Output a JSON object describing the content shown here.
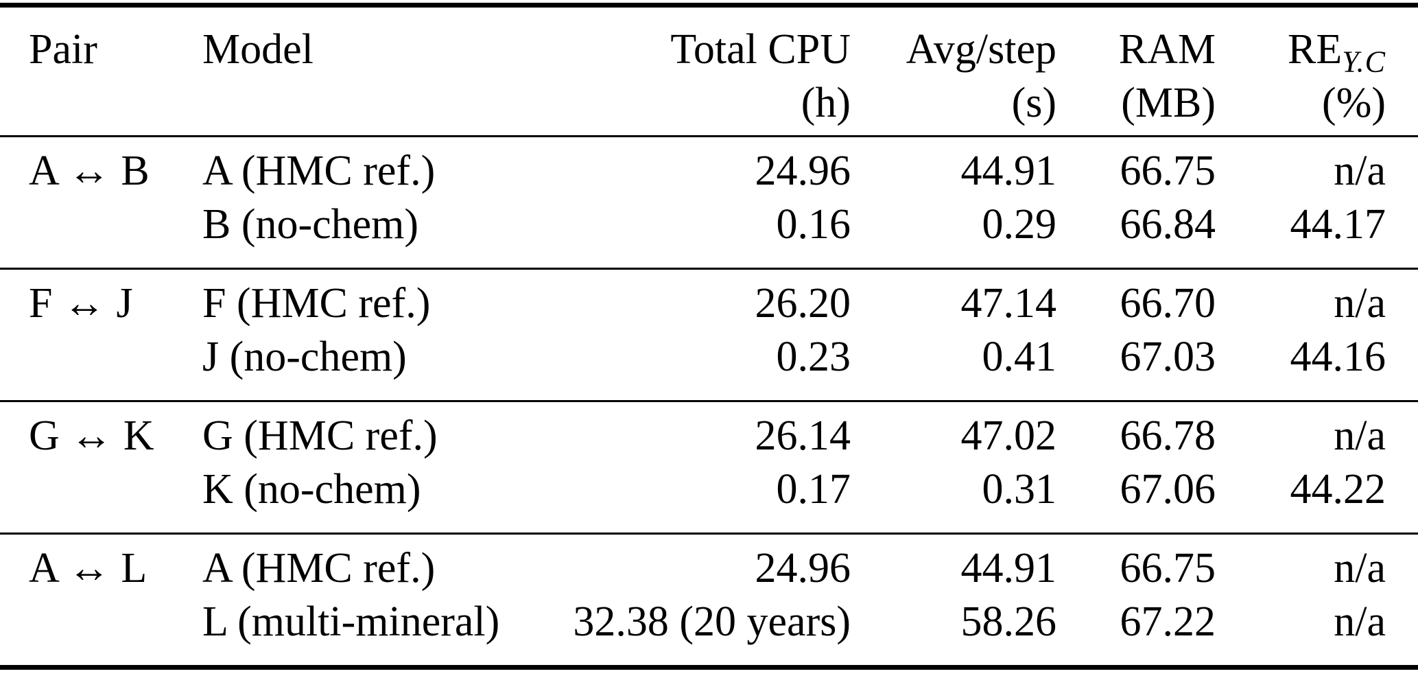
{
  "table": {
    "headers": {
      "pair": "Pair",
      "model": "Model",
      "total_cpu": "Total CPU",
      "total_cpu_unit": "(h)",
      "avg_step": "Avg/step",
      "avg_step_unit": "(s)",
      "ram": "RAM",
      "ram_unit": "(MB)",
      "re_base": "RE",
      "re_sub": "Y.C",
      "re_unit": "(%)"
    },
    "groups": [
      {
        "pair": "A ↔ B",
        "rows": [
          {
            "model": "A (HMC ref.)",
            "total_cpu": "24.96",
            "avg_step": "44.91",
            "ram": "66.75",
            "re": "n/a"
          },
          {
            "model": "B (no-chem)",
            "total_cpu": "0.16",
            "avg_step": "0.29",
            "ram": "66.84",
            "re": "44.17"
          }
        ]
      },
      {
        "pair": "F ↔ J",
        "rows": [
          {
            "model": "F (HMC ref.)",
            "total_cpu": "26.20",
            "avg_step": "47.14",
            "ram": "66.70",
            "re": "n/a"
          },
          {
            "model": "J (no-chem)",
            "total_cpu": "0.23",
            "avg_step": "0.41",
            "ram": "67.03",
            "re": "44.16"
          }
        ]
      },
      {
        "pair": "G ↔ K",
        "rows": [
          {
            "model": "G (HMC ref.)",
            "total_cpu": "26.14",
            "avg_step": "47.02",
            "ram": "66.78",
            "re": "n/a"
          },
          {
            "model": "K (no-chem)",
            "total_cpu": "0.17",
            "avg_step": "0.31",
            "ram": "67.06",
            "re": "44.22"
          }
        ]
      },
      {
        "pair": "A ↔ L",
        "rows": [
          {
            "model": "A (HMC ref.)",
            "total_cpu": "24.96",
            "avg_step": "44.91",
            "ram": "66.75",
            "re": "n/a"
          },
          {
            "model": "L (multi-mineral)",
            "total_cpu": "32.38 (20 years)",
            "avg_step": "58.26",
            "ram": "67.22",
            "re": "n/a"
          }
        ]
      }
    ]
  },
  "colors": {
    "text": "#000000",
    "background": "#ffffff",
    "rule": "#000000"
  }
}
